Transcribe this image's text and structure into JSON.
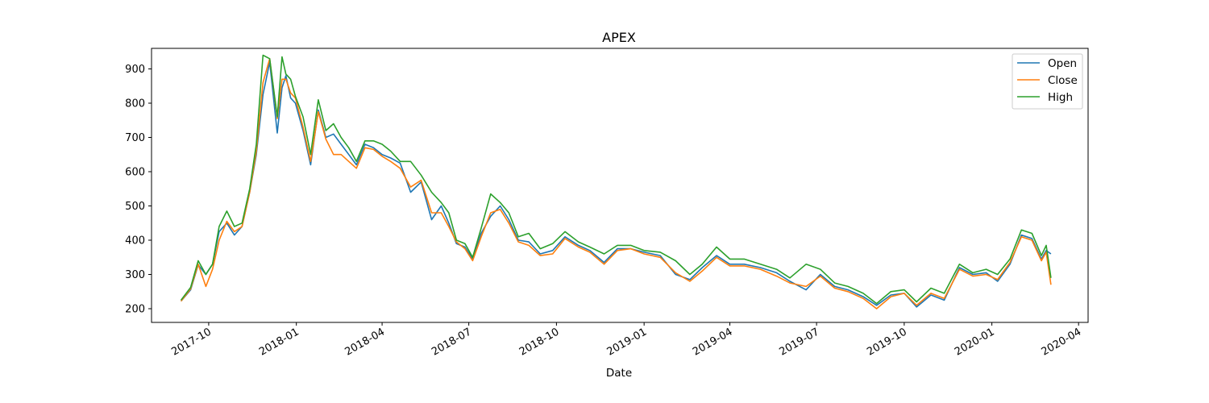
{
  "chart_data": {
    "type": "line",
    "title": "APEX",
    "xlabel": "Date",
    "ylabel": "",
    "xlim": [
      "2017-08-02",
      "2020-04-11"
    ],
    "ylim": [
      160,
      960
    ],
    "x_ticks": [
      "2017-10",
      "2018-01",
      "2018-04",
      "2018-07",
      "2018-10",
      "2019-01",
      "2019-04",
      "2019-07",
      "2019-10",
      "2020-01",
      "2020-04"
    ],
    "x_tick_dates": [
      "2017-10-01",
      "2018-01-01",
      "2018-04-01",
      "2018-07-01",
      "2018-10-01",
      "2019-01-01",
      "2019-04-01",
      "2019-07-01",
      "2019-10-01",
      "2020-01-01",
      "2020-04-01"
    ],
    "y_ticks": [
      200,
      300,
      400,
      500,
      600,
      700,
      800,
      900
    ],
    "grid": false,
    "legend_position": "top-right",
    "x": [
      "2017-09-02",
      "2017-09-12",
      "2017-09-20",
      "2017-09-28",
      "2017-10-05",
      "2017-10-12",
      "2017-10-20",
      "2017-10-28",
      "2017-11-05",
      "2017-11-13",
      "2017-11-20",
      "2017-11-27",
      "2017-12-04",
      "2017-12-12",
      "2017-12-17",
      "2017-12-21",
      "2017-12-26",
      "2017-12-31",
      "2018-01-08",
      "2018-01-16",
      "2018-01-24",
      "2018-02-01",
      "2018-02-09",
      "2018-02-17",
      "2018-02-25",
      "2018-03-05",
      "2018-03-14",
      "2018-03-23",
      "2018-04-01",
      "2018-04-10",
      "2018-04-20",
      "2018-05-01",
      "2018-05-12",
      "2018-05-23",
      "2018-06-02",
      "2018-06-10",
      "2018-06-18",
      "2018-06-27",
      "2018-07-05",
      "2018-07-14",
      "2018-07-24",
      "2018-08-03",
      "2018-08-12",
      "2018-08-22",
      "2018-09-02",
      "2018-09-14",
      "2018-09-27",
      "2018-10-10",
      "2018-10-24",
      "2018-11-05",
      "2018-11-20",
      "2018-12-04",
      "2018-12-18",
      "2019-01-01",
      "2019-01-18",
      "2019-02-03",
      "2019-02-18",
      "2019-03-03",
      "2019-03-18",
      "2019-04-01",
      "2019-04-16",
      "2019-05-03",
      "2019-05-20",
      "2019-06-03",
      "2019-06-20",
      "2019-07-05",
      "2019-07-20",
      "2019-08-03",
      "2019-08-19",
      "2019-09-02",
      "2019-09-17",
      "2019-10-01",
      "2019-10-14",
      "2019-10-29",
      "2019-11-12",
      "2019-11-28",
      "2019-12-12",
      "2019-12-26",
      "2020-01-07",
      "2020-01-20",
      "2020-02-01",
      "2020-02-12",
      "2020-02-22",
      "2020-02-27",
      "2020-03-03"
    ],
    "series": [
      {
        "name": "Open",
        "color": "#1f77b4",
        "values": [
          222,
          255,
          328,
          300,
          330,
          425,
          450,
          415,
          440,
          540,
          650,
          825,
          920,
          713,
          845,
          880,
          815,
          800,
          720,
          620,
          780,
          700,
          710,
          680,
          650,
          620,
          680,
          670,
          650,
          640,
          625,
          540,
          570,
          460,
          500,
          450,
          390,
          380,
          345,
          420,
          470,
          500,
          460,
          400,
          395,
          360,
          370,
          410,
          385,
          370,
          335,
          375,
          375,
          365,
          355,
          300,
          285,
          320,
          355,
          330,
          330,
          320,
          305,
          280,
          255,
          300,
          265,
          255,
          235,
          210,
          240,
          245,
          205,
          240,
          225,
          320,
          300,
          305,
          280,
          330,
          415,
          405,
          345,
          370,
          360
        ]
      },
      {
        "name": "Close",
        "color": "#ff7f0e",
        "values": [
          222,
          258,
          330,
          265,
          315,
          400,
          455,
          425,
          440,
          540,
          660,
          860,
          930,
          755,
          870,
          870,
          830,
          815,
          730,
          630,
          775,
          695,
          650,
          650,
          630,
          610,
          670,
          665,
          645,
          630,
          610,
          555,
          575,
          480,
          480,
          440,
          395,
          375,
          340,
          410,
          480,
          490,
          450,
          395,
          385,
          355,
          360,
          405,
          380,
          365,
          330,
          370,
          375,
          360,
          350,
          305,
          280,
          310,
          350,
          325,
          325,
          315,
          295,
          275,
          265,
          295,
          260,
          250,
          230,
          200,
          235,
          245,
          210,
          245,
          230,
          315,
          295,
          300,
          285,
          335,
          410,
          400,
          340,
          365,
          270
        ]
      },
      {
        "name": "High",
        "color": "#2ca02c",
        "values": [
          225,
          262,
          340,
          300,
          330,
          440,
          485,
          440,
          450,
          550,
          680,
          940,
          930,
          760,
          935,
          885,
          870,
          820,
          760,
          650,
          810,
          720,
          740,
          700,
          670,
          630,
          690,
          690,
          680,
          660,
          630,
          630,
          590,
          540,
          510,
          480,
          400,
          390,
          350,
          435,
          535,
          510,
          480,
          410,
          420,
          375,
          390,
          425,
          395,
          380,
          360,
          385,
          385,
          370,
          365,
          340,
          300,
          330,
          380,
          345,
          345,
          330,
          315,
          290,
          330,
          315,
          275,
          265,
          245,
          215,
          250,
          255,
          220,
          260,
          245,
          330,
          305,
          315,
          300,
          345,
          430,
          420,
          355,
          385,
          290
        ]
      }
    ]
  }
}
